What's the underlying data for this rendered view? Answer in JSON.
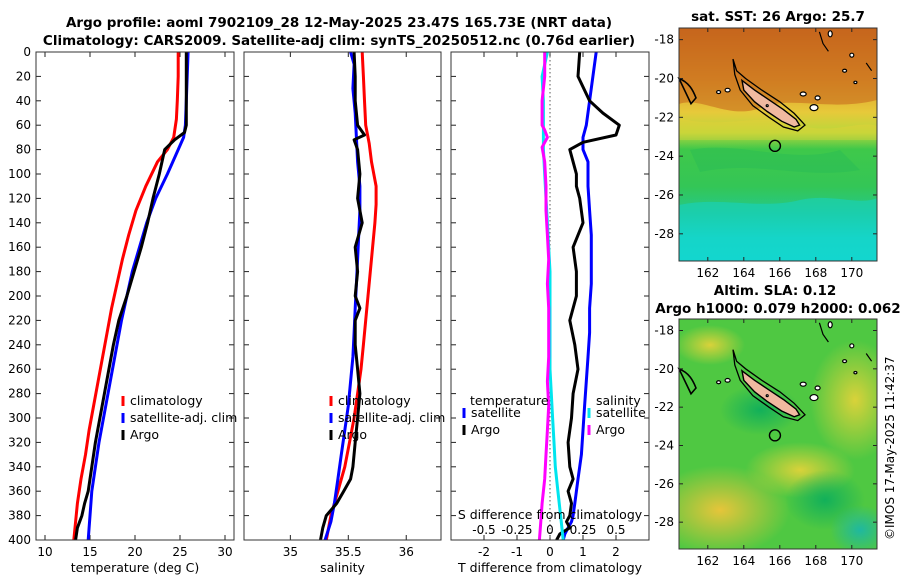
{
  "figure": {
    "title_line1": "Argo profile: aoml 7902109_28 12-May-2025 23.47S 165.73E (NRT data)",
    "title_line2": "Climatology: CARS2009. Satellite-adj clim: synTS_20250512.nc (0.76d earlier)",
    "watermark": "©IMOS 17-May-2025 11:42:37"
  },
  "colors": {
    "climatology": "#ff0000",
    "satellite": "#0000ff",
    "argo": "#000000",
    "satellite_s": "#00e5ee",
    "argo_s": "#ff00ff",
    "land": "#f0b9a0"
  },
  "chart_data": [
    {
      "id": "temperature",
      "type": "line",
      "xlabel": "temperature (deg C)",
      "xlim": [
        9,
        31
      ],
      "xticks": [
        10,
        15,
        20,
        25,
        30
      ],
      "xtick_labels": [
        "10",
        "15",
        "20",
        "25",
        "30"
      ],
      "ylim": [
        0,
        400
      ],
      "yticks": [
        0,
        20,
        40,
        60,
        80,
        100,
        120,
        140,
        160,
        180,
        200,
        220,
        240,
        260,
        280,
        300,
        320,
        340,
        360,
        380,
        400
      ],
      "ytick_labels": [
        "0",
        "20",
        "40",
        "60",
        "80",
        "100",
        "120",
        "140",
        "160",
        "180",
        "200",
        "220",
        "240",
        "260",
        "280",
        "300",
        "320",
        "340",
        "360",
        "380",
        "400"
      ],
      "legend": [
        "climatology",
        "satellite-adj. clim",
        "Argo"
      ],
      "legend_position": "bottom-right",
      "series": [
        {
          "name": "climatology",
          "color_key": "climatology",
          "x": [
            24.8,
            24.8,
            24.7,
            24.6,
            24.3,
            23.6,
            22.5,
            21.2,
            20.1,
            19.3,
            18.6,
            18.0,
            17.4,
            16.9,
            16.4,
            15.9,
            15.4,
            14.9,
            14.5,
            14.0,
            13.6,
            13.2
          ],
          "y": [
            0,
            20,
            40,
            55,
            70,
            80,
            90,
            110,
            130,
            150,
            170,
            190,
            210,
            230,
            250,
            270,
            290,
            310,
            330,
            350,
            370,
            400
          ]
        },
        {
          "name": "satellite-adj. clim",
          "color_key": "satellite",
          "x": [
            25.9,
            25.8,
            25.7,
            25.6,
            25.4,
            24.8,
            23.6,
            22.3,
            21.3,
            20.5,
            19.7,
            19.1,
            18.5,
            18.0,
            17.5,
            17.0,
            16.5,
            16.0,
            15.6,
            15.2,
            14.8
          ],
          "y": [
            0,
            20,
            40,
            60,
            70,
            80,
            100,
            120,
            140,
            160,
            180,
            200,
            220,
            240,
            260,
            280,
            300,
            320,
            340,
            360,
            400
          ]
        },
        {
          "name": "Argo",
          "color_key": "argo",
          "x": [
            25.7,
            25.7,
            25.7,
            25.7,
            25.5,
            24.4,
            23.3,
            22.7,
            22.0,
            21.4,
            20.7,
            19.9,
            19.1,
            18.2,
            17.6,
            17.1,
            16.6,
            16.1,
            15.6,
            15.2,
            14.8,
            14.4,
            14.1,
            13.6,
            13.4
          ],
          "y": [
            0,
            20,
            40,
            60,
            66,
            72,
            80,
            100,
            120,
            140,
            160,
            180,
            200,
            220,
            240,
            260,
            280,
            300,
            320,
            340,
            360,
            370,
            380,
            390,
            400
          ]
        }
      ]
    },
    {
      "id": "salinity",
      "type": "line",
      "xlabel": "salinity",
      "xlim": [
        34.6,
        36.3
      ],
      "xticks": [
        35,
        35.5,
        36
      ],
      "xtick_labels": [
        "35",
        "35.5",
        "36"
      ],
      "ylim": [
        0,
        400
      ],
      "legend": [
        "climatology",
        "satellite-adj. clim",
        "Argo"
      ],
      "legend_position": "bottom-right",
      "series": [
        {
          "name": "climatology",
          "color_key": "climatology",
          "x": [
            35.62,
            35.63,
            35.64,
            35.65,
            35.68,
            35.7,
            35.72,
            35.74,
            35.74,
            35.73,
            35.71,
            35.69,
            35.67,
            35.65,
            35.63,
            35.61,
            35.58,
            35.55,
            35.51,
            35.47,
            35.41,
            35.35,
            35.31
          ],
          "y": [
            0,
            20,
            40,
            60,
            75,
            90,
            100,
            110,
            125,
            140,
            160,
            180,
            200,
            220,
            240,
            260,
            280,
            300,
            320,
            340,
            360,
            380,
            400
          ]
        },
        {
          "name": "satellite-adj. clim",
          "color_key": "satellite",
          "x": [
            35.52,
            35.55,
            35.54,
            35.56,
            35.57,
            35.58,
            35.6,
            35.6,
            35.59,
            35.58,
            35.57,
            35.56,
            35.55,
            35.54,
            35.52,
            35.5,
            35.47,
            35.44,
            35.41,
            35.38,
            35.35,
            35.3
          ],
          "y": [
            0,
            10,
            30,
            50,
            70,
            90,
            110,
            130,
            150,
            170,
            190,
            210,
            230,
            250,
            270,
            290,
            310,
            330,
            350,
            370,
            385,
            400
          ]
        },
        {
          "name": "Argo",
          "color_key": "argo",
          "x": [
            35.55,
            35.56,
            35.56,
            35.58,
            35.64,
            35.55,
            35.58,
            35.6,
            35.58,
            35.62,
            35.56,
            35.58,
            35.56,
            35.6,
            35.56,
            35.56,
            35.58,
            35.6,
            35.58,
            35.56,
            35.54,
            35.52,
            35.46,
            35.4,
            35.31,
            35.28,
            35.26
          ],
          "y": [
            0,
            20,
            40,
            60,
            68,
            72,
            80,
            100,
            120,
            140,
            160,
            180,
            200,
            210,
            220,
            240,
            260,
            280,
            300,
            320,
            340,
            350,
            360,
            370,
            380,
            390,
            400
          ]
        }
      ]
    },
    {
      "id": "difference",
      "type": "line",
      "xlabel": "T difference from climatology",
      "xlim": [
        -3.0,
        3.0
      ],
      "xticks": [
        -2,
        -1,
        0,
        1,
        2
      ],
      "xtick_labels": [
        "-2",
        "-1",
        "0",
        "1",
        "2"
      ],
      "s_axis_label": "S difference from climatology",
      "s_xlim": [
        -0.75,
        0.75
      ],
      "s_xticks": [
        -0.5,
        -0.25,
        0,
        0.25,
        0.5
      ],
      "s_xtick_labels": [
        "-0.5",
        "-0.25",
        "0",
        "0.25",
        "0.5"
      ],
      "ylim": [
        0,
        400
      ],
      "legend_temperature_title": "temperature",
      "legend_salinity_title": "salinity",
      "legend_temperature": [
        "satellite",
        "Argo"
      ],
      "legend_salinity": [
        "satellite",
        "Argo"
      ],
      "series": [
        {
          "name": "T satellite",
          "color_key": "satellite",
          "axis": "T",
          "x": [
            1.4,
            1.3,
            1.2,
            1.1,
            1.0,
            1.0,
            1.15,
            1.15,
            1.2,
            1.25,
            1.25,
            1.25,
            1.2,
            1.2,
            1.15,
            1.1,
            1.05,
            1.0,
            0.95,
            0.9,
            0.85,
            0.8,
            0.75,
            0.7,
            0.65,
            0.55,
            0.45,
            0.4
          ],
          "y": [
            0,
            20,
            40,
            60,
            70,
            80,
            90,
            110,
            130,
            150,
            170,
            190,
            210,
            230,
            250,
            270,
            290,
            310,
            330,
            340,
            350,
            360,
            370,
            380,
            385,
            390,
            395,
            400
          ]
        },
        {
          "name": "T Argo",
          "color_key": "argo",
          "axis": "T",
          "x": [
            0.9,
            0.85,
            1.2,
            1.6,
            2.1,
            2.0,
            1.0,
            0.6,
            0.7,
            0.8,
            0.8,
            0.9,
            1.0,
            0.7,
            0.8,
            0.8,
            0.6,
            0.75,
            0.85,
            0.7,
            0.65,
            0.55,
            0.6,
            0.7,
            0.55,
            0.65,
            0.6,
            0.5,
            0.6,
            0.3,
            0.2
          ],
          "y": [
            0,
            20,
            40,
            50,
            60,
            68,
            74,
            80,
            90,
            100,
            110,
            120,
            140,
            160,
            180,
            200,
            220,
            240,
            260,
            280,
            300,
            320,
            340,
            350,
            360,
            370,
            380,
            385,
            390,
            395,
            400
          ]
        },
        {
          "name": "S satellite",
          "color_key": "satellite_s",
          "axis": "S",
          "x": [
            -0.02,
            -0.06,
            -0.05,
            -0.05,
            -0.05,
            -0.05,
            -0.04,
            -0.03,
            -0.02,
            -0.01,
            0.0,
            0.0,
            0.0,
            0.0,
            0.0,
            0.01,
            0.02,
            0.03,
            0.04,
            0.06,
            0.08,
            0.1
          ],
          "y": [
            0,
            20,
            40,
            60,
            70,
            80,
            100,
            120,
            140,
            160,
            180,
            200,
            220,
            240,
            260,
            280,
            300,
            320,
            340,
            360,
            380,
            400
          ]
        },
        {
          "name": "S Argo",
          "color_key": "argo_s",
          "axis": "S",
          "x": [
            -0.04,
            -0.04,
            -0.06,
            -0.06,
            -0.04,
            -0.02,
            -0.06,
            -0.04,
            -0.03,
            -0.03,
            -0.02,
            -0.01,
            -0.02,
            -0.01,
            -0.01,
            -0.01,
            -0.02,
            -0.01,
            -0.02,
            -0.03,
            -0.04,
            -0.05,
            -0.06,
            -0.07,
            -0.08
          ],
          "y": [
            0,
            20,
            40,
            60,
            64,
            70,
            78,
            90,
            110,
            130,
            150,
            170,
            190,
            210,
            230,
            250,
            270,
            290,
            310,
            330,
            350,
            360,
            370,
            385,
            400
          ]
        }
      ]
    }
  ],
  "maps": [
    {
      "id": "sst",
      "title_line1": "sat. SST: 26 Argo: 25.7",
      "title_line2": "",
      "xticks": [
        162,
        164,
        166,
        168,
        170
      ],
      "xtick_labels": [
        "162",
        "164",
        "166",
        "168",
        "170"
      ],
      "yticks": [
        -18,
        -20,
        -22,
        -24,
        -26,
        -28
      ],
      "ytick_labels": [
        "-18",
        "-20",
        "-22",
        "-24",
        "-26",
        "-28"
      ],
      "lon_range": [
        160.4,
        171.4
      ],
      "lat_range": [
        -17.4,
        -29.4
      ],
      "profile_lon": 165.73,
      "profile_lat": -23.47
    },
    {
      "id": "sla",
      "title_line1": "Altim. SLA: 0.12",
      "title_line2": "Argo h1000: 0.079 h2000: 0.062",
      "xticks": [
        162,
        164,
        166,
        168,
        170
      ],
      "xtick_labels": [
        "162",
        "164",
        "166",
        "168",
        "170"
      ],
      "yticks": [
        -18,
        -20,
        -22,
        -24,
        -26,
        -28
      ],
      "ytick_labels": [
        "-18",
        "-20",
        "-22",
        "-24",
        "-26",
        "-28"
      ],
      "lon_range": [
        160.4,
        171.4
      ],
      "lat_range": [
        -17.4,
        -29.4
      ],
      "profile_lon": 165.73,
      "profile_lat": -23.47
    }
  ]
}
